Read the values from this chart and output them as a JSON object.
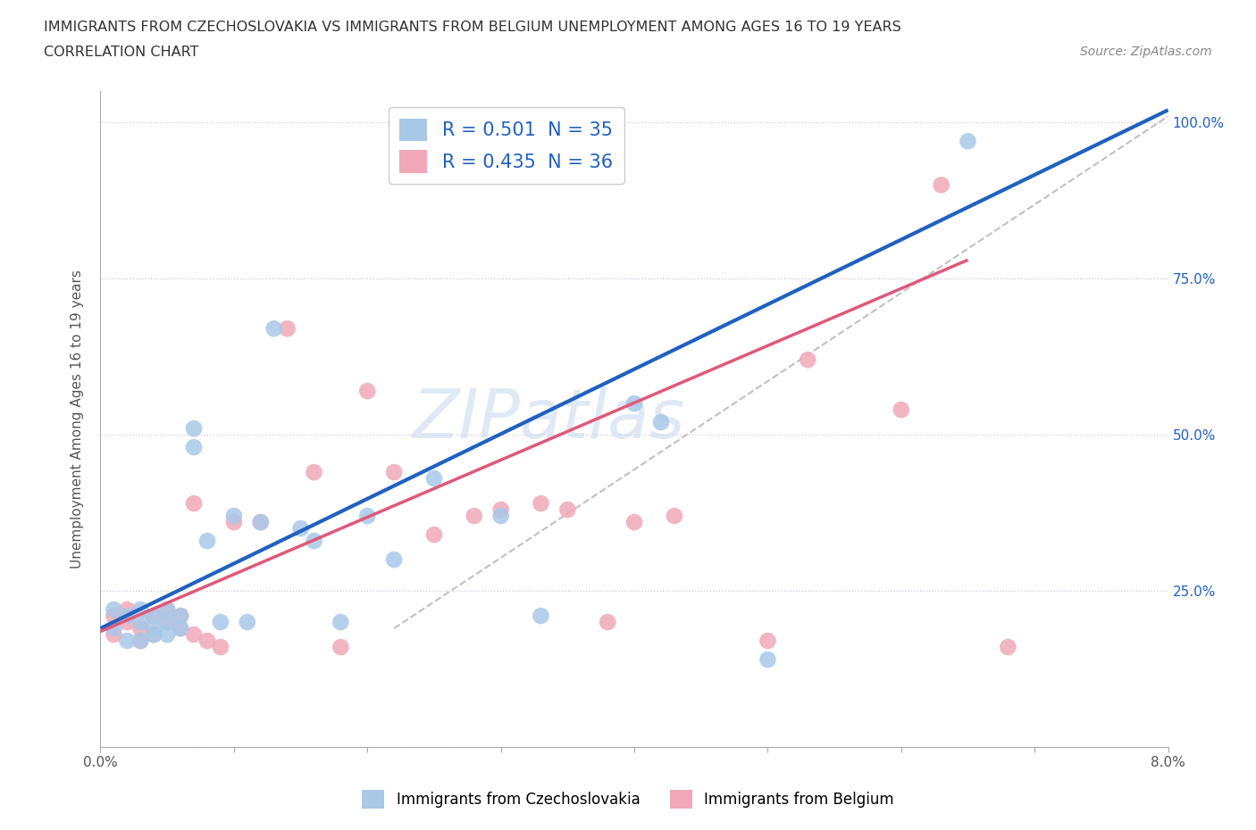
{
  "title_line1": "IMMIGRANTS FROM CZECHOSLOVAKIA VS IMMIGRANTS FROM BELGIUM UNEMPLOYMENT AMONG AGES 16 TO 19 YEARS",
  "title_line2": "CORRELATION CHART",
  "source_text": "Source: ZipAtlas.com",
  "ylabel": "Unemployment Among Ages 16 to 19 years",
  "xlim": [
    0.0,
    0.08
  ],
  "ylim": [
    0.0,
    1.05
  ],
  "x_ticks": [
    0.0,
    0.01,
    0.02,
    0.03,
    0.04,
    0.05,
    0.06,
    0.07,
    0.08
  ],
  "x_tick_labels": [
    "0.0%",
    "",
    "",
    "",
    "",
    "",
    "",
    "",
    "8.0%"
  ],
  "y_ticks": [
    0.0,
    0.25,
    0.5,
    0.75,
    1.0
  ],
  "y_tick_labels": [
    "",
    "25.0%",
    "50.0%",
    "75.0%",
    "100.0%"
  ],
  "legend_r1": "R = 0.501  N = 35",
  "legend_r2": "R = 0.435  N = 36",
  "color_blue": "#A8C8E8",
  "color_pink": "#F0A8B8",
  "line_color_blue": "#2060C0",
  "line_color_pink": "#E05878",
  "dashed_line_color": "#C0C0C8",
  "watermark": "ZIPatlas",
  "legend_text_color": "#2060C0",
  "blue_scatter_x": [
    0.001,
    0.001,
    0.002,
    0.002,
    0.003,
    0.003,
    0.003,
    0.004,
    0.004,
    0.004,
    0.005,
    0.005,
    0.005,
    0.006,
    0.006,
    0.007,
    0.007,
    0.008,
    0.009,
    0.01,
    0.011,
    0.012,
    0.013,
    0.015,
    0.016,
    0.018,
    0.02,
    0.022,
    0.025,
    0.03,
    0.033,
    0.04,
    0.042,
    0.05,
    0.065
  ],
  "blue_scatter_y": [
    0.22,
    0.19,
    0.21,
    0.17,
    0.22,
    0.2,
    0.17,
    0.21,
    0.19,
    0.18,
    0.2,
    0.22,
    0.18,
    0.21,
    0.19,
    0.51,
    0.48,
    0.33,
    0.2,
    0.37,
    0.2,
    0.36,
    0.67,
    0.35,
    0.33,
    0.2,
    0.37,
    0.3,
    0.43,
    0.37,
    0.21,
    0.55,
    0.52,
    0.14,
    0.97
  ],
  "pink_scatter_x": [
    0.001,
    0.001,
    0.002,
    0.002,
    0.003,
    0.003,
    0.004,
    0.004,
    0.005,
    0.005,
    0.006,
    0.006,
    0.007,
    0.007,
    0.008,
    0.009,
    0.01,
    0.012,
    0.014,
    0.016,
    0.018,
    0.02,
    0.022,
    0.025,
    0.028,
    0.03,
    0.033,
    0.035,
    0.038,
    0.04,
    0.043,
    0.05,
    0.053,
    0.06,
    0.063,
    0.068
  ],
  "pink_scatter_y": [
    0.21,
    0.18,
    0.2,
    0.22,
    0.19,
    0.17,
    0.21,
    0.18,
    0.2,
    0.22,
    0.19,
    0.21,
    0.39,
    0.18,
    0.17,
    0.16,
    0.36,
    0.36,
    0.67,
    0.44,
    0.16,
    0.57,
    0.44,
    0.34,
    0.37,
    0.38,
    0.39,
    0.38,
    0.2,
    0.36,
    0.37,
    0.17,
    0.62,
    0.54,
    0.9,
    0.16
  ],
  "blue_line_x0": 0.0,
  "blue_line_y0": 0.19,
  "blue_line_x1": 0.08,
  "blue_line_y1": 1.02,
  "pink_line_x0": 0.0,
  "pink_line_y0": 0.185,
  "pink_line_x1": 0.065,
  "pink_line_y1": 0.78,
  "gray_line_x0": 0.022,
  "gray_line_y0": 0.19,
  "gray_line_x1": 0.08,
  "gray_line_y1": 1.01
}
